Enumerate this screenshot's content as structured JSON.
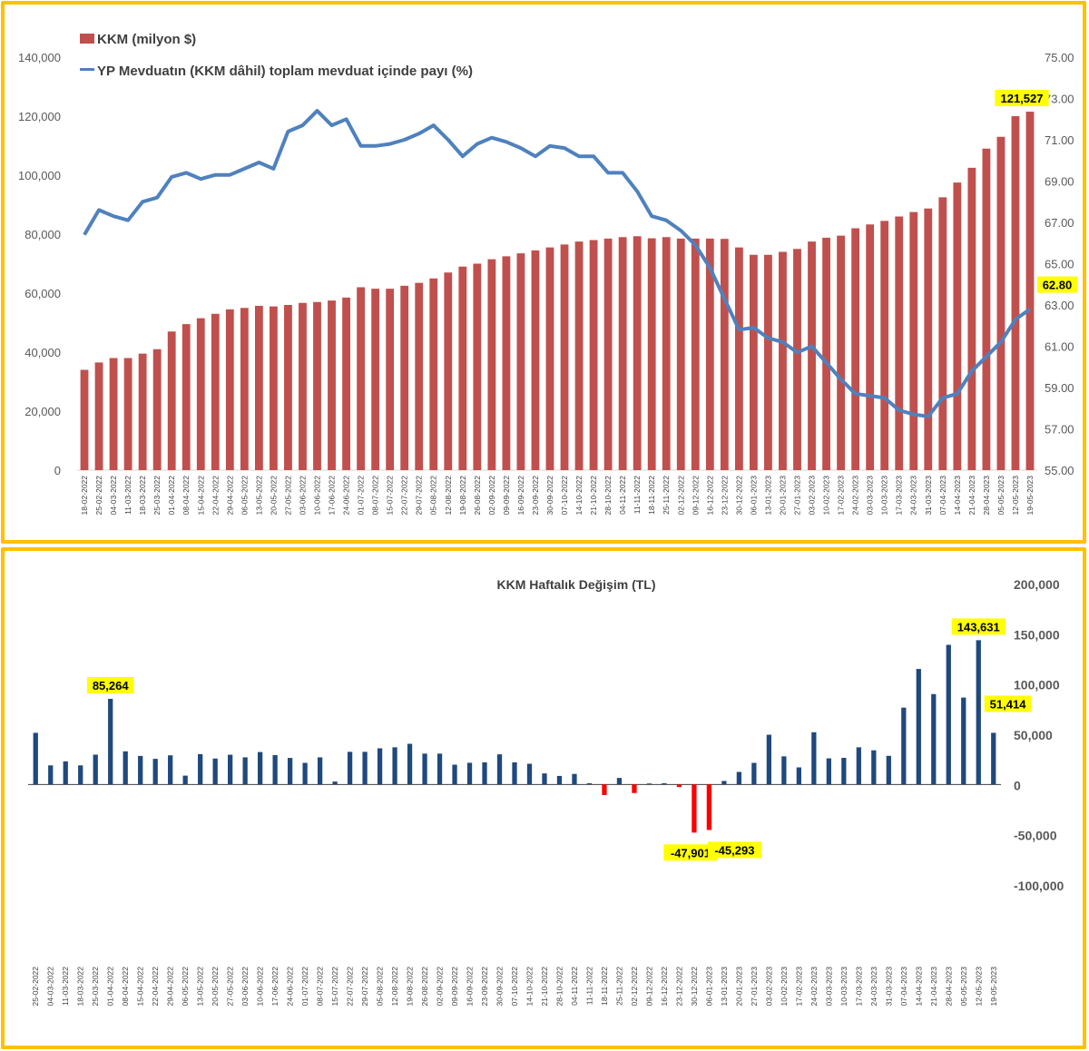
{
  "colors": {
    "frame": "#FFC000",
    "kkm_bar": "#C0504D",
    "share_line": "#4F81BD",
    "weekly_positive": "#1F497D",
    "weekly_negative": "#FF0000",
    "callout_bg": "#FFFF00"
  },
  "chart_data": [
    {
      "type": "bar+line",
      "title": "",
      "legend": [
        {
          "label": "KKM (milyon $)",
          "kind": "bar"
        },
        {
          "label": "YP Mevduatın (KKM dâhil) toplam mevduat içinde payı (%)",
          "kind": "line"
        }
      ],
      "legend_position": "top-left",
      "y_left": {
        "min": 0,
        "max": 140000,
        "ticks": [
          "0",
          "20,000",
          "40,000",
          "60,000",
          "80,000",
          "100,000",
          "120,000",
          "140,000"
        ]
      },
      "y_right": {
        "min": 55,
        "max": 75,
        "ticks": [
          "55.00",
          "57.00",
          "59.00",
          "61.00",
          "63.00",
          "65.00",
          "67.00",
          "69.00",
          "71.00",
          "73.00",
          "75.00"
        ]
      },
      "categories": [
        "18-02-2022",
        "25-02-2022",
        "04-03-2022",
        "11-03-2022",
        "18-03-2022",
        "25-03-2022",
        "01-04-2022",
        "08-04-2022",
        "15-04-2022",
        "22-04-2022",
        "29-04-2022",
        "06-05-2022",
        "13-05-2022",
        "20-05-2022",
        "27-05-2022",
        "03-06-2022",
        "10-06-2022",
        "17-06-2022",
        "24-06-2022",
        "01-07-2022",
        "08-07-2022",
        "15-07-2022",
        "22-07-2022",
        "29-07-2022",
        "05-08-2022",
        "12-08-2022",
        "19-08-2022",
        "26-08-2022",
        "02-09-2022",
        "09-09-2022",
        "16-09-2022",
        "23-09-2022",
        "30-09-2022",
        "07-10-2022",
        "14-10-2022",
        "21-10-2022",
        "28-10-2022",
        "04-11-2022",
        "11-11-2022",
        "18-11-2022",
        "25-11-2022",
        "02-12-2022",
        "09-12-2022",
        "16-12-2022",
        "23-12-2022",
        "30-12-2022",
        "06-01-2023",
        "13-01-2023",
        "20-01-2023",
        "27-01-2023",
        "03-02-2023",
        "10-02-2023",
        "17-02-2023",
        "24-02-2023",
        "03-03-2023",
        "10-03-2023",
        "17-03-2023",
        "24-03-2023",
        "31-03-2023",
        "07-04-2023",
        "14-04-2023",
        "21-04-2023",
        "28-04-2023",
        "05-05-2023",
        "12-05-2023",
        "19-05-2023"
      ],
      "series": [
        {
          "name": "KKM (milyon $)",
          "axis": "left",
          "type": "bar",
          "values": [
            34000,
            36500,
            38000,
            38000,
            39500,
            41000,
            47000,
            49500,
            51500,
            53000,
            54500,
            55000,
            55700,
            55500,
            56000,
            56700,
            57000,
            57500,
            58500,
            62000,
            61500,
            61500,
            62500,
            63500,
            65000,
            67000,
            69000,
            70000,
            71500,
            72500,
            73500,
            74500,
            75500,
            76500,
            77500,
            78000,
            78500,
            79000,
            79300,
            78600,
            79000,
            78500,
            78500,
            78500,
            78400,
            75500,
            73000,
            73000,
            74000,
            75000,
            77500,
            78800,
            79500,
            82000,
            83300,
            84500,
            86000,
            87500,
            88700,
            92500,
            97500,
            102500,
            109000,
            113000,
            120000,
            121527
          ]
        },
        {
          "name": "YP Mevduatın (KKM dâhil) toplam mevduat içinde payı (%)",
          "axis": "right",
          "type": "line",
          "values": [
            66.4,
            67.6,
            67.3,
            67.1,
            68.0,
            68.2,
            69.2,
            69.4,
            69.1,
            69.3,
            69.3,
            69.6,
            69.9,
            69.6,
            71.4,
            71.7,
            72.4,
            71.7,
            72.0,
            70.7,
            70.7,
            70.8,
            71.0,
            71.3,
            71.7,
            71.0,
            70.2,
            70.8,
            71.1,
            70.9,
            70.6,
            70.2,
            70.7,
            70.6,
            70.2,
            70.2,
            69.4,
            69.4,
            68.5,
            67.3,
            67.1,
            66.6,
            65.9,
            64.8,
            63.3,
            61.8,
            61.9,
            61.4,
            61.2,
            60.7,
            61.0,
            60.2,
            59.4,
            58.7,
            58.6,
            58.5,
            57.9,
            57.7,
            57.6,
            58.5,
            58.7,
            59.8,
            60.5,
            61.2,
            62.3,
            62.8
          ]
        }
      ],
      "annotations": [
        {
          "series": 0,
          "index": 65,
          "label": "121,527"
        },
        {
          "series": 1,
          "index": 65,
          "label": "62.80"
        }
      ]
    },
    {
      "type": "bar",
      "title": "KKM Haftalık Değişim (TL)",
      "y_right": {
        "min": -100000,
        "max": 200000,
        "ticks": [
          "200,000",
          "150,000",
          "100,000",
          "50,000",
          "0",
          "-50,000",
          "-100,000"
        ]
      },
      "categories": [
        "25-02-2022",
        "04-03-2022",
        "11-03-2022",
        "18-03-2022",
        "25-03-2022",
        "01-04-2022",
        "08-04-2022",
        "15-04-2022",
        "22-04-2022",
        "29-04-2022",
        "06-05-2022",
        "13-05-2022",
        "20-05-2022",
        "27-05-2022",
        "03-06-2022",
        "10-06-2022",
        "17-06-2022",
        "24-06-2022",
        "01-07-2022",
        "08-07-2022",
        "15-07-2022",
        "22-07-2022",
        "29-07-2022",
        "05-08-2022",
        "12-08-2022",
        "19-08-2022",
        "26-08-2022",
        "02-09-2022",
        "09-09-2022",
        "16-09-2022",
        "23-09-2022",
        "30-09-2022",
        "07-10-2022",
        "14-10-2022",
        "21-10-2022",
        "28-10-2022",
        "04-11-2022",
        "11-11-2022",
        "18-11-2022",
        "25-11-2022",
        "02-12-2022",
        "09-12-2022",
        "16-12-2022",
        "23-12-2022",
        "30-12-2022",
        "06-01-2023",
        "13-01-2023",
        "20-01-2023",
        "27-01-2023",
        "03-02-2023",
        "10-02-2023",
        "17-02-2023",
        "24-02-2023",
        "03-03-2023",
        "10-03-2023",
        "17-03-2023",
        "24-03-2023",
        "31-03-2023",
        "07-04-2023",
        "14-04-2023",
        "21-04-2023",
        "28-04-2023",
        "05-05-2023",
        "12-05-2023",
        "19-05-2023"
      ],
      "series": [
        {
          "name": "KKM Haftalık Değişim (TL)",
          "values": [
            51400,
            19000,
            23000,
            19000,
            29700,
            85264,
            33000,
            28400,
            25500,
            29000,
            8800,
            30200,
            25800,
            29600,
            27000,
            32300,
            29200,
            26400,
            21500,
            27000,
            2900,
            32500,
            32500,
            36000,
            37000,
            40500,
            30700,
            30700,
            19700,
            21600,
            22000,
            30000,
            22000,
            20600,
            11000,
            8500,
            10500,
            1200,
            -10500,
            6500,
            -8500,
            1000,
            1200,
            -2500,
            -47901,
            -45293,
            3500,
            12500,
            21500,
            49500,
            28000,
            17000,
            52000,
            26000,
            26500,
            37000,
            34000,
            28500,
            76500,
            115000,
            90000,
            139000,
            86500,
            143631,
            51414
          ]
        }
      ],
      "annotations": [
        {
          "index": 5,
          "label": "85,264"
        },
        {
          "index": 44,
          "label": "-47,901"
        },
        {
          "index": 45,
          "label": "-45,293"
        },
        {
          "index": 63,
          "label": "143,631"
        },
        {
          "index": 64,
          "label": "51,414"
        }
      ]
    }
  ]
}
